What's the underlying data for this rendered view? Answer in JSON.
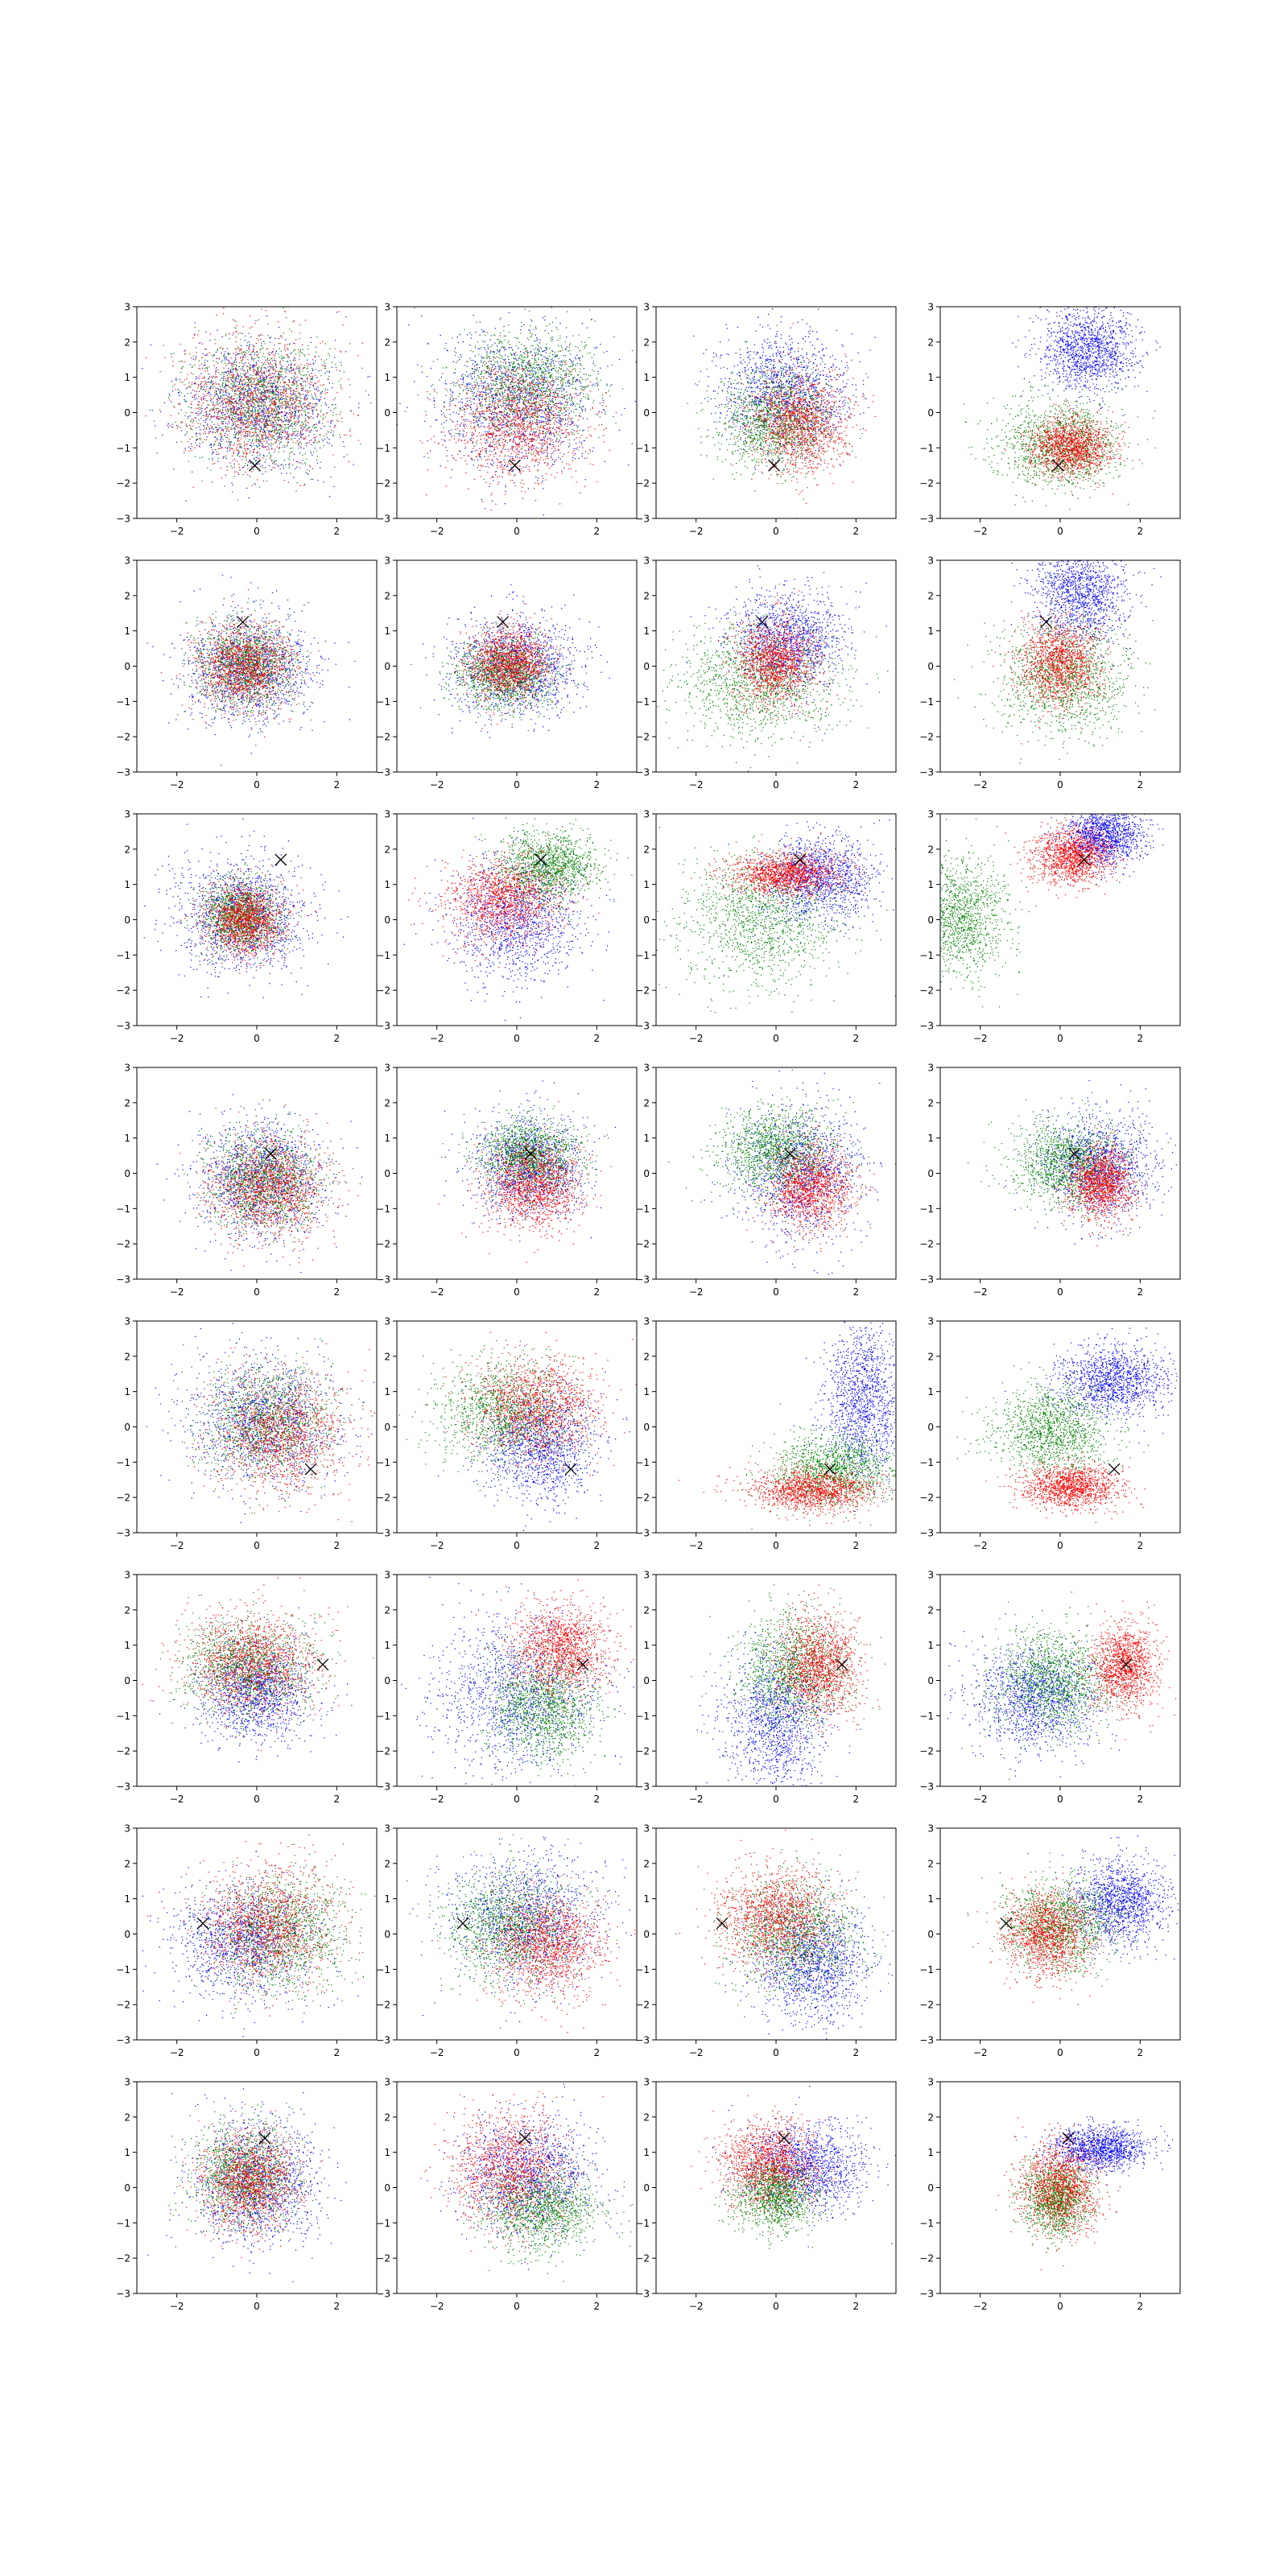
{
  "figure": {
    "rows": 8,
    "cols": 4
  },
  "colors": {
    "series_1": "#0000ff",
    "series_2": "#008000",
    "series_3": "#ff0000",
    "marker": "#000000",
    "axes": "#000000"
  },
  "axes_common": {
    "xlim": [
      -3,
      3
    ],
    "ylim": [
      -3,
      3
    ],
    "xticks": [
      -2,
      0,
      2
    ],
    "yticks": [
      -3,
      -2,
      -1,
      0,
      1,
      2,
      3
    ],
    "xtick_labels": [
      "−2",
      "0",
      "2"
    ],
    "ytick_labels": [
      "−3",
      "−2",
      "−1",
      "0",
      "1",
      "2",
      "3"
    ]
  },
  "chart_data": {
    "type": "scatter",
    "grid": false,
    "legend": "none",
    "series": [
      {
        "color": "#0000ff",
        "marker": "point"
      },
      {
        "color": "#008000",
        "marker": "point"
      },
      {
        "color": "#ff0000",
        "marker": "point"
      }
    ],
    "panels": [
      {
        "row": 1,
        "col": 1,
        "marker_x": [
          -0.05,
          -1.5
        ],
        "clusters": [
          {
            "c": 0,
            "cx": 0,
            "cy": 0.2,
            "sx": 0.9,
            "sy": 0.9
          },
          {
            "c": 1,
            "cx": 0.1,
            "cy": 0.3,
            "sx": 0.9,
            "sy": 0.9
          },
          {
            "c": 2,
            "cx": 0,
            "cy": 0.3,
            "sx": 0.9,
            "sy": 0.9
          }
        ]
      },
      {
        "row": 1,
        "col": 2,
        "marker_x": [
          -0.05,
          -1.5
        ],
        "clusters": [
          {
            "c": 0,
            "cx": 0,
            "cy": 0.3,
            "sx": 1,
            "sy": 1
          },
          {
            "c": 1,
            "cx": 0.2,
            "cy": 0.8,
            "sx": 0.9,
            "sy": 0.8
          },
          {
            "c": 2,
            "cx": 0,
            "cy": -0.3,
            "sx": 0.8,
            "sy": 0.8
          }
        ]
      },
      {
        "row": 1,
        "col": 3,
        "marker_x": [
          -0.05,
          -1.5
        ],
        "clusters": [
          {
            "c": 0,
            "cx": 0.2,
            "cy": 0.6,
            "sx": 0.8,
            "sy": 0.8
          },
          {
            "c": 1,
            "cx": 0,
            "cy": -0.2,
            "sx": 0.7,
            "sy": 0.7
          },
          {
            "c": 2,
            "cx": 0.6,
            "cy": -0.3,
            "sx": 0.6,
            "sy": 0.7
          }
        ]
      },
      {
        "row": 1,
        "col": 4,
        "marker_x": [
          -0.05,
          -1.5
        ],
        "clusters": [
          {
            "c": 0,
            "cx": 0.7,
            "cy": 1.8,
            "sx": 0.6,
            "sy": 0.6
          },
          {
            "c": 1,
            "cx": 0,
            "cy": -0.9,
            "sx": 0.8,
            "sy": 0.6
          },
          {
            "c": 2,
            "cx": 0.3,
            "cy": -1,
            "sx": 0.5,
            "sy": 0.4
          }
        ]
      },
      {
        "row": 2,
        "col": 1,
        "marker_x": [
          -0.35,
          1.25
        ],
        "clusters": [
          {
            "c": 0,
            "cx": -0.2,
            "cy": 0,
            "sx": 0.8,
            "sy": 0.8
          },
          {
            "c": 1,
            "cx": -0.3,
            "cy": 0,
            "sx": 0.6,
            "sy": 0.6
          },
          {
            "c": 2,
            "cx": -0.3,
            "cy": 0,
            "sx": 0.6,
            "sy": 0.6
          }
        ]
      },
      {
        "row": 2,
        "col": 2,
        "marker_x": [
          -0.35,
          1.25
        ],
        "clusters": [
          {
            "c": 0,
            "cx": 0,
            "cy": 0,
            "sx": 0.8,
            "sy": 0.7
          },
          {
            "c": 1,
            "cx": -0.3,
            "cy": -0.2,
            "sx": 0.6,
            "sy": 0.5
          },
          {
            "c": 2,
            "cx": -0.2,
            "cy": 0.1,
            "sx": 0.5,
            "sy": 0.5
          }
        ]
      },
      {
        "row": 2,
        "col": 3,
        "marker_x": [
          -0.35,
          1.25
        ],
        "clusters": [
          {
            "c": 0,
            "cx": 0.3,
            "cy": 0.7,
            "sx": 0.7,
            "sy": 0.7
          },
          {
            "c": 1,
            "cx": -0.4,
            "cy": -0.4,
            "sx": 1,
            "sy": 0.8
          },
          {
            "c": 2,
            "cx": 0,
            "cy": 0.1,
            "sx": 0.5,
            "sy": 0.6
          }
        ]
      },
      {
        "row": 2,
        "col": 4,
        "marker_x": [
          -0.35,
          1.25
        ],
        "clusters": [
          {
            "c": 0,
            "cx": 0.5,
            "cy": 2.1,
            "sx": 0.6,
            "sy": 0.7
          },
          {
            "c": 1,
            "cx": 0.1,
            "cy": -0.3,
            "sx": 0.8,
            "sy": 0.8
          },
          {
            "c": 2,
            "cx": 0,
            "cy": 0.1,
            "sx": 0.5,
            "sy": 0.6
          }
        ]
      },
      {
        "row": 3,
        "col": 1,
        "marker_x": [
          0.6,
          1.7
        ],
        "clusters": [
          {
            "c": 0,
            "cx": -0.3,
            "cy": 0.1,
            "sx": 0.8,
            "sy": 0.8
          },
          {
            "c": 1,
            "cx": -0.4,
            "cy": 0.1,
            "sx": 0.5,
            "sy": 0.5
          },
          {
            "c": 2,
            "cx": -0.3,
            "cy": 0,
            "sx": 0.5,
            "sy": 0.5
          }
        ]
      },
      {
        "row": 3,
        "col": 2,
        "marker_x": [
          0.6,
          1.7
        ],
        "clusters": [
          {
            "c": 0,
            "cx": 0,
            "cy": 0,
            "sx": 0.8,
            "sy": 0.9
          },
          {
            "c": 1,
            "cx": 0.8,
            "cy": 1.5,
            "sx": 0.6,
            "sy": 0.5
          },
          {
            "c": 2,
            "cx": -0.3,
            "cy": 0.6,
            "sx": 0.7,
            "sy": 0.6
          }
        ]
      },
      {
        "row": 3,
        "col": 3,
        "marker_x": [
          0.6,
          1.7
        ],
        "clusters": [
          {
            "c": 0,
            "cx": 1.1,
            "cy": 1.2,
            "sx": 0.7,
            "sy": 0.6
          },
          {
            "c": 1,
            "cx": -0.4,
            "cy": 0,
            "sx": 1,
            "sy": 0.9
          },
          {
            "c": 2,
            "cx": 0.2,
            "cy": 1.3,
            "sx": 0.7,
            "sy": 0.3
          }
        ]
      },
      {
        "row": 3,
        "col": 4,
        "marker_x": [
          0.6,
          1.7
        ],
        "clusters": [
          {
            "c": 0,
            "cx": 1.1,
            "cy": 2.4,
            "sx": 0.5,
            "sy": 0.4
          },
          {
            "c": 1,
            "cx": -2.5,
            "cy": 0.1,
            "sx": 0.6,
            "sy": 0.8
          },
          {
            "c": 2,
            "cx": 0.3,
            "cy": 1.8,
            "sx": 0.5,
            "sy": 0.4
          }
        ]
      },
      {
        "row": 4,
        "col": 1,
        "marker_x": [
          0.35,
          0.55
        ],
        "clusters": [
          {
            "c": 0,
            "cx": 0.1,
            "cy": -0.2,
            "sx": 0.8,
            "sy": 0.8
          },
          {
            "c": 1,
            "cx": 0.2,
            "cy": -0.2,
            "sx": 0.7,
            "sy": 0.7
          },
          {
            "c": 2,
            "cx": 0.3,
            "cy": -0.4,
            "sx": 0.7,
            "sy": 0.7
          }
        ]
      },
      {
        "row": 4,
        "col": 2,
        "marker_x": [
          0.35,
          0.55
        ],
        "clusters": [
          {
            "c": 0,
            "cx": 0.3,
            "cy": 0.2,
            "sx": 0.7,
            "sy": 0.7
          },
          {
            "c": 1,
            "cx": 0.3,
            "cy": 0.5,
            "sx": 0.6,
            "sy": 0.5
          },
          {
            "c": 2,
            "cx": 0.4,
            "cy": -0.4,
            "sx": 0.6,
            "sy": 0.6
          }
        ]
      },
      {
        "row": 4,
        "col": 3,
        "marker_x": [
          0.35,
          0.55
        ],
        "clusters": [
          {
            "c": 0,
            "cx": 0.6,
            "cy": 0,
            "sx": 0.8,
            "sy": 0.9
          },
          {
            "c": 1,
            "cx": 0,
            "cy": 0.6,
            "sx": 0.7,
            "sy": 0.6
          },
          {
            "c": 2,
            "cx": 0.9,
            "cy": -0.4,
            "sx": 0.5,
            "sy": 0.6
          }
        ]
      },
      {
        "row": 4,
        "col": 4,
        "marker_x": [
          0.35,
          0.55
        ],
        "clusters": [
          {
            "c": 0,
            "cx": 1,
            "cy": 0.2,
            "sx": 0.7,
            "sy": 0.7
          },
          {
            "c": 1,
            "cx": 0.2,
            "cy": 0.3,
            "sx": 0.7,
            "sy": 0.6
          },
          {
            "c": 2,
            "cx": 1,
            "cy": -0.3,
            "sx": 0.4,
            "sy": 0.5
          }
        ]
      },
      {
        "row": 5,
        "col": 1,
        "marker_x": [
          1.35,
          -1.2
        ],
        "clusters": [
          {
            "c": 0,
            "cx": 0.2,
            "cy": 0.2,
            "sx": 0.9,
            "sy": 0.9
          },
          {
            "c": 1,
            "cx": 0.3,
            "cy": 0.1,
            "sx": 0.8,
            "sy": 0.8
          },
          {
            "c": 2,
            "cx": 0.6,
            "cy": -0.2,
            "sx": 0.8,
            "sy": 0.8
          }
        ]
      },
      {
        "row": 5,
        "col": 2,
        "marker_x": [
          1.35,
          -1.2
        ],
        "clusters": [
          {
            "c": 0,
            "cx": 0.6,
            "cy": -0.5,
            "sx": 0.7,
            "sy": 0.8
          },
          {
            "c": 1,
            "cx": -0.3,
            "cy": 0.4,
            "sx": 0.8,
            "sy": 0.7
          },
          {
            "c": 2,
            "cx": 0.5,
            "cy": 0.6,
            "sx": 0.8,
            "sy": 0.7
          }
        ]
      },
      {
        "row": 5,
        "col": 3,
        "marker_x": [
          1.35,
          -1.2
        ],
        "clusters": [
          {
            "c": 0,
            "cx": 2.2,
            "cy": 0.8,
            "sx": 0.5,
            "sy": 1.1
          },
          {
            "c": 1,
            "cx": 1.5,
            "cy": -1.2,
            "sx": 0.8,
            "sy": 0.5
          },
          {
            "c": 2,
            "cx": 0.9,
            "cy": -1.8,
            "sx": 0.8,
            "sy": 0.3
          }
        ]
      },
      {
        "row": 5,
        "col": 4,
        "marker_x": [
          1.35,
          -1.2
        ],
        "clusters": [
          {
            "c": 0,
            "cx": 1.3,
            "cy": 1.3,
            "sx": 0.7,
            "sy": 0.5
          },
          {
            "c": 1,
            "cx": -0.2,
            "cy": -0.1,
            "sx": 0.7,
            "sy": 0.6
          },
          {
            "c": 2,
            "cx": 0.3,
            "cy": -1.7,
            "sx": 0.6,
            "sy": 0.3
          }
        ]
      },
      {
        "row": 6,
        "col": 1,
        "marker_x": [
          1.65,
          0.45
        ],
        "clusters": [
          {
            "c": 0,
            "cx": 0,
            "cy": -0.3,
            "sx": 0.7,
            "sy": 0.7
          },
          {
            "c": 1,
            "cx": -0.2,
            "cy": 0.4,
            "sx": 0.8,
            "sy": 0.7
          },
          {
            "c": 2,
            "cx": -0.1,
            "cy": 0.5,
            "sx": 0.8,
            "sy": 0.7
          }
        ]
      },
      {
        "row": 6,
        "col": 2,
        "marker_x": [
          1.65,
          0.45
        ],
        "clusters": [
          {
            "c": 0,
            "cx": 0,
            "cy": -0.4,
            "sx": 1,
            "sy": 1.1
          },
          {
            "c": 1,
            "cx": 0.7,
            "cy": -0.7,
            "sx": 0.7,
            "sy": 0.8
          },
          {
            "c": 2,
            "cx": 1.1,
            "cy": 0.9,
            "sx": 0.6,
            "sy": 0.6
          }
        ]
      },
      {
        "row": 6,
        "col": 3,
        "marker_x": [
          1.65,
          0.45
        ],
        "clusters": [
          {
            "c": 0,
            "cx": 0,
            "cy": -1.2,
            "sx": 0.6,
            "sy": 1
          },
          {
            "c": 1,
            "cx": 0.4,
            "cy": 0.3,
            "sx": 0.7,
            "sy": 0.8
          },
          {
            "c": 2,
            "cx": 1.1,
            "cy": 0.4,
            "sx": 0.5,
            "sy": 0.7
          }
        ]
      },
      {
        "row": 6,
        "col": 4,
        "marker_x": [
          1.65,
          0.45
        ],
        "clusters": [
          {
            "c": 0,
            "cx": -0.6,
            "cy": -0.5,
            "sx": 0.8,
            "sy": 0.7
          },
          {
            "c": 1,
            "cx": -0.2,
            "cy": 0,
            "sx": 0.7,
            "sy": 0.7
          },
          {
            "c": 2,
            "cx": 1.6,
            "cy": 0.4,
            "sx": 0.4,
            "sy": 0.6
          }
        ]
      },
      {
        "row": 7,
        "col": 1,
        "marker_x": [
          -1.35,
          0.3
        ],
        "clusters": [
          {
            "c": 0,
            "cx": -0.3,
            "cy": -0.2,
            "sx": 0.9,
            "sy": 0.8
          },
          {
            "c": 1,
            "cx": 0.6,
            "cy": 0,
            "sx": 0.8,
            "sy": 0.8
          },
          {
            "c": 2,
            "cx": 0.3,
            "cy": 0.2,
            "sx": 0.8,
            "sy": 0.8
          }
        ]
      },
      {
        "row": 7,
        "col": 2,
        "marker_x": [
          -1.35,
          0.3
        ],
        "clusters": [
          {
            "c": 0,
            "cx": 0.3,
            "cy": 0.4,
            "sx": 0.9,
            "sy": 0.9
          },
          {
            "c": 1,
            "cx": -0.2,
            "cy": 0.2,
            "sx": 0.8,
            "sy": 0.8
          },
          {
            "c": 2,
            "cx": 0.8,
            "cy": -0.3,
            "sx": 0.7,
            "sy": 0.7
          }
        ]
      },
      {
        "row": 7,
        "col": 3,
        "marker_x": [
          -1.35,
          0.3
        ],
        "clusters": [
          {
            "c": 0,
            "cx": 0.9,
            "cy": -0.8,
            "sx": 0.7,
            "sy": 0.8
          },
          {
            "c": 1,
            "cx": 0.5,
            "cy": 0,
            "sx": 0.8,
            "sy": 0.8
          },
          {
            "c": 2,
            "cx": 0,
            "cy": 0.5,
            "sx": 0.7,
            "sy": 0.7
          }
        ]
      },
      {
        "row": 7,
        "col": 4,
        "marker_x": [
          -1.35,
          0.3
        ],
        "clusters": [
          {
            "c": 0,
            "cx": 1.5,
            "cy": 0.9,
            "sx": 0.6,
            "sy": 0.6
          },
          {
            "c": 1,
            "cx": 0,
            "cy": 0.3,
            "sx": 0.7,
            "sy": 0.6
          },
          {
            "c": 2,
            "cx": -0.3,
            "cy": 0,
            "sx": 0.5,
            "sy": 0.6
          }
        ]
      },
      {
        "row": 8,
        "col": 1,
        "marker_x": [
          0.2,
          1.4
        ],
        "clusters": [
          {
            "c": 0,
            "cx": 0,
            "cy": 0.1,
            "sx": 0.8,
            "sy": 0.9
          },
          {
            "c": 1,
            "cx": -0.3,
            "cy": 0.3,
            "sx": 0.6,
            "sy": 0.7
          },
          {
            "c": 2,
            "cx": -0.2,
            "cy": 0.2,
            "sx": 0.6,
            "sy": 0.7
          }
        ]
      },
      {
        "row": 8,
        "col": 2,
        "marker_x": [
          0.2,
          1.4
        ],
        "clusters": [
          {
            "c": 0,
            "cx": 0.3,
            "cy": 0.4,
            "sx": 0.8,
            "sy": 0.8
          },
          {
            "c": 1,
            "cx": 0.6,
            "cy": -0.6,
            "sx": 0.7,
            "sy": 0.6
          },
          {
            "c": 2,
            "cx": -0.2,
            "cy": 0.5,
            "sx": 0.7,
            "sy": 0.8
          }
        ]
      },
      {
        "row": 8,
        "col": 3,
        "marker_x": [
          0.2,
          1.4
        ],
        "clusters": [
          {
            "c": 0,
            "cx": 0.8,
            "cy": 0.6,
            "sx": 0.7,
            "sy": 0.6
          },
          {
            "c": 1,
            "cx": 0,
            "cy": -0.2,
            "sx": 0.5,
            "sy": 0.5
          },
          {
            "c": 2,
            "cx": -0.2,
            "cy": 0.7,
            "sx": 0.6,
            "sy": 0.6
          }
        ]
      },
      {
        "row": 8,
        "col": 4,
        "marker_x": [
          0.2,
          1.4
        ],
        "clusters": [
          {
            "c": 0,
            "cx": 1,
            "cy": 1.1,
            "sx": 0.6,
            "sy": 0.3
          },
          {
            "c": 1,
            "cx": -0.1,
            "cy": -0.3,
            "sx": 0.4,
            "sy": 0.5
          },
          {
            "c": 2,
            "cx": 0,
            "cy": 0,
            "sx": 0.5,
            "sy": 0.6
          }
        ]
      }
    ]
  }
}
